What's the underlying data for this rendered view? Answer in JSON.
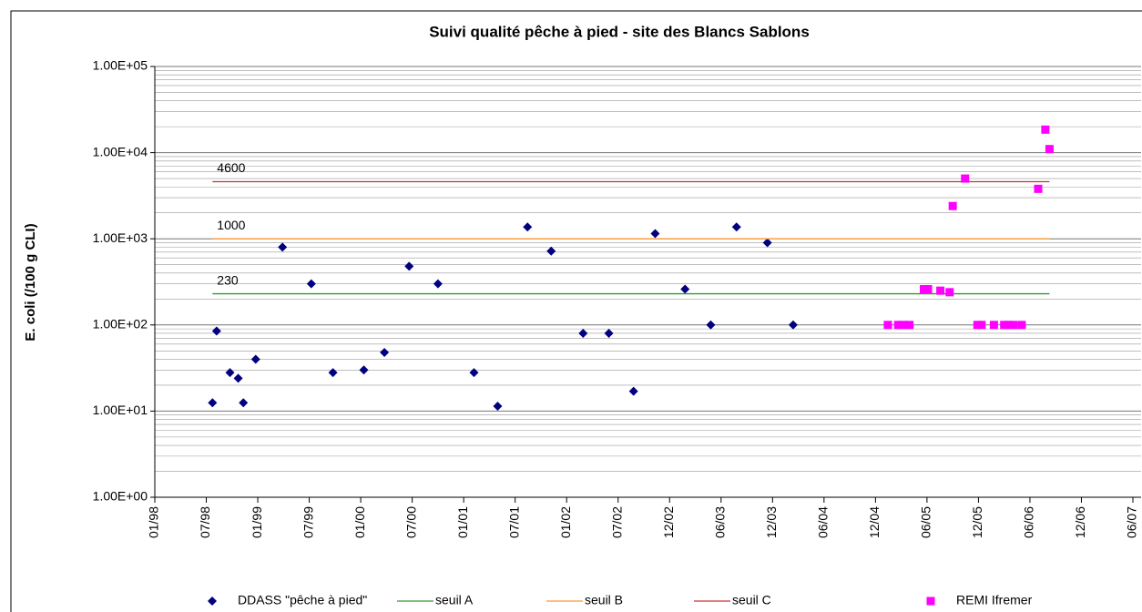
{
  "chart_data": {
    "type": "scatter",
    "title": "Suivi qualité pêche à pied - site des Blancs Sablons",
    "y_label": "E. coli (/100 g CLI)",
    "log_y": true,
    "grid": true,
    "minor_grid": true,
    "legend": "bottom",
    "xlim": [
      1998,
      2007.5
    ],
    "xticks": [
      {
        "value": 1998,
        "label": "01/98"
      },
      {
        "value": 1998.5,
        "label": "07/98"
      },
      {
        "value": 1999,
        "label": "01/99"
      },
      {
        "value": 1999.5,
        "label": "07/99"
      },
      {
        "value": 2000,
        "label": "01/00"
      },
      {
        "value": 2000.5,
        "label": "07/00"
      },
      {
        "value": 2001,
        "label": "01/01"
      },
      {
        "value": 2001.5,
        "label": "07/01"
      },
      {
        "value": 2002,
        "label": "01/02"
      },
      {
        "value": 2002.5,
        "label": "07/02"
      },
      {
        "value": 2003,
        "label": "12/02"
      },
      {
        "value": 2003.5,
        "label": "06/03"
      },
      {
        "value": 2004,
        "label": "12/03"
      },
      {
        "value": 2004.5,
        "label": "06/04"
      },
      {
        "value": 2005,
        "label": "12/04"
      },
      {
        "value": 2005.5,
        "label": "06/05"
      },
      {
        "value": 2006,
        "label": "12/05"
      },
      {
        "value": 2006.5,
        "label": "06/06"
      },
      {
        "value": 2007,
        "label": "12/06"
      },
      {
        "value": 2007.5,
        "label": "06/07"
      }
    ],
    "ylim": [
      1,
      100000
    ],
    "yticks": [
      {
        "value": 1,
        "label": "1.00E+00"
      },
      {
        "value": 10,
        "label": "1.00E+01"
      },
      {
        "value": 100,
        "label": "1.00E+02"
      },
      {
        "value": 1000,
        "label": "1.00E+03"
      },
      {
        "value": 10000,
        "label": "1.00E+04"
      },
      {
        "value": 100000,
        "label": "1.00E+05"
      }
    ],
    "series": [
      {
        "name": "DDASS \"pêche à pied\"",
        "type": "scatter",
        "marker": "diamond",
        "color": "#000080",
        "x": [
          1998.56,
          1998.6,
          1998.73,
          1998.81,
          1998.86,
          1998.98,
          1999.24,
          1999.52,
          1999.73,
          2000.03,
          2000.23,
          2000.47,
          2000.75,
          2001.1,
          2001.33,
          2001.62,
          2001.85,
          2002.16,
          2002.41,
          2002.65,
          2002.86,
          2003.15,
          2003.4,
          2003.65,
          2003.95,
          2004.2
        ],
        "values": [
          12.5,
          85,
          28,
          24,
          12.5,
          40,
          800,
          300,
          28,
          30,
          48,
          480,
          300,
          28,
          11.4,
          1370,
          720,
          80,
          80,
          17,
          1150,
          260,
          100,
          1370,
          900,
          100
        ]
      },
      {
        "name": "seuil A",
        "type": "line",
        "color": "#339933",
        "x": [
          1998.56,
          2006.69
        ],
        "values": [
          230,
          230
        ]
      },
      {
        "name": "seuil B",
        "type": "line",
        "color": "#ff9933",
        "x": [
          1998.56,
          2006.69
        ],
        "values": [
          1000,
          1000
        ]
      },
      {
        "name": "seuil C",
        "type": "line",
        "color": "#cc3333",
        "x": [
          1998.56,
          2006.69
        ],
        "values": [
          4600,
          4600
        ]
      },
      {
        "name": "REMI Ifremer",
        "type": "scatter",
        "marker": "square",
        "color": "#ff00ff",
        "x": [
          2005.12,
          2005.22,
          2005.27,
          2005.33,
          2005.47,
          2005.51,
          2005.63,
          2005.72,
          2005.75,
          2005.87,
          2005.99,
          2006.03,
          2006.15,
          2006.25,
          2006.29,
          2006.34,
          2006.42,
          2006.58,
          2006.65,
          2006.69
        ],
        "values": [
          100,
          100,
          100,
          100,
          260,
          260,
          250,
          240,
          2400,
          5000,
          100,
          100,
          100,
          100,
          100,
          100,
          100,
          3800,
          18500,
          11000
        ]
      }
    ]
  }
}
